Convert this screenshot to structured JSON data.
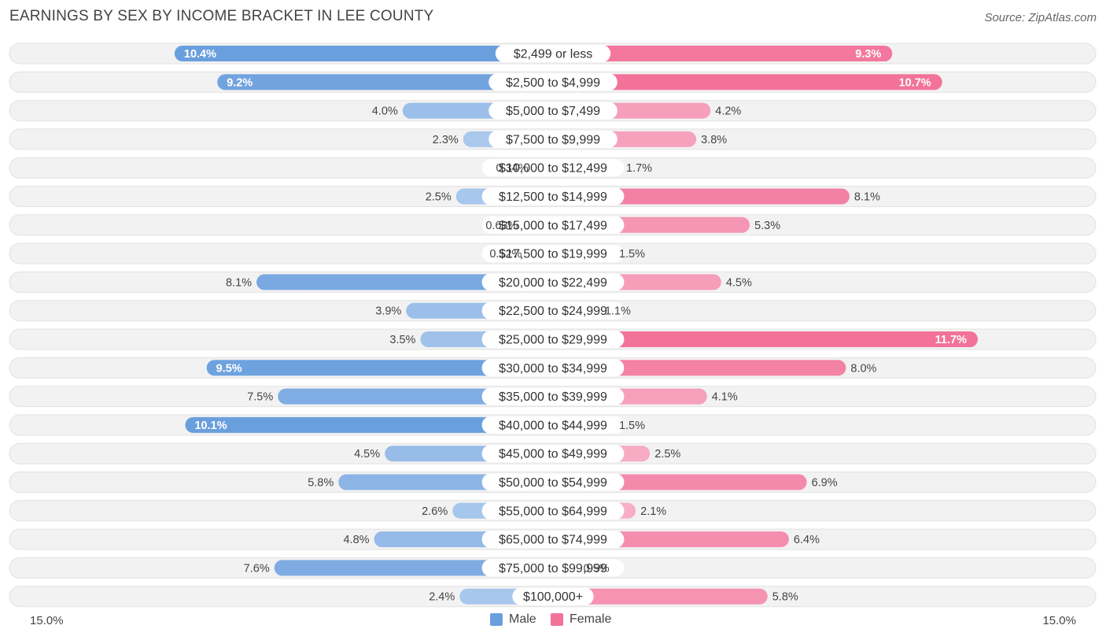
{
  "chart_data": {
    "type": "bar",
    "orientation": "horizontal-diverging",
    "title": "EARNINGS BY SEX BY INCOME BRACKET IN LEE COUNTY",
    "source": "Source: ZipAtlas.com",
    "categories": [
      "$2,499 or less",
      "$2,500 to $4,999",
      "$5,000 to $7,499",
      "$7,500 to $9,999",
      "$10,000 to $12,499",
      "$12,500 to $14,999",
      "$15,000 to $17,499",
      "$17,500 to $19,999",
      "$20,000 to $22,499",
      "$22,500 to $24,999",
      "$25,000 to $29,999",
      "$30,000 to $34,999",
      "$35,000 to $39,999",
      "$40,000 to $44,999",
      "$45,000 to $49,999",
      "$50,000 to $54,999",
      "$55,000 to $64,999",
      "$65,000 to $74,999",
      "$75,000 to $99,999",
      "$100,000+"
    ],
    "series": [
      {
        "name": "Male",
        "color": "#6a9fde",
        "values": [
          10.4,
          9.2,
          4.0,
          2.3,
          0.34,
          2.5,
          0.63,
          0.52,
          8.1,
          3.9,
          3.5,
          9.5,
          7.5,
          10.1,
          4.5,
          5.8,
          2.6,
          4.8,
          7.6,
          2.4
        ],
        "labels": [
          "10.4%",
          "9.2%",
          "4.0%",
          "2.3%",
          "0.34%",
          "2.5%",
          "0.63%",
          "0.52%",
          "8.1%",
          "3.9%",
          "3.5%",
          "9.5%",
          "7.5%",
          "10.1%",
          "4.5%",
          "5.8%",
          "2.6%",
          "4.8%",
          "7.6%",
          "2.4%"
        ]
      },
      {
        "name": "Female",
        "color": "#f2729a",
        "values": [
          9.3,
          10.7,
          4.2,
          3.8,
          1.7,
          8.1,
          5.3,
          1.5,
          4.5,
          1.1,
          11.7,
          8.0,
          4.1,
          1.5,
          2.5,
          6.9,
          2.1,
          6.4,
          0.5,
          5.8
        ],
        "labels": [
          "9.3%",
          "10.7%",
          "4.2%",
          "3.8%",
          "1.7%",
          "8.1%",
          "5.3%",
          "1.5%",
          "4.5%",
          "1.1%",
          "11.7%",
          "8.0%",
          "4.1%",
          "1.5%",
          "2.5%",
          "6.9%",
          "2.1%",
          "6.4%",
          "0.5%",
          "5.8%"
        ]
      }
    ],
    "xlim": [
      0,
      15.0
    ],
    "axis_labels": {
      "left": "15.0%",
      "right": "15.0%"
    },
    "legend": {
      "position": "bottom-center",
      "entries": [
        "Male",
        "Female"
      ]
    }
  }
}
